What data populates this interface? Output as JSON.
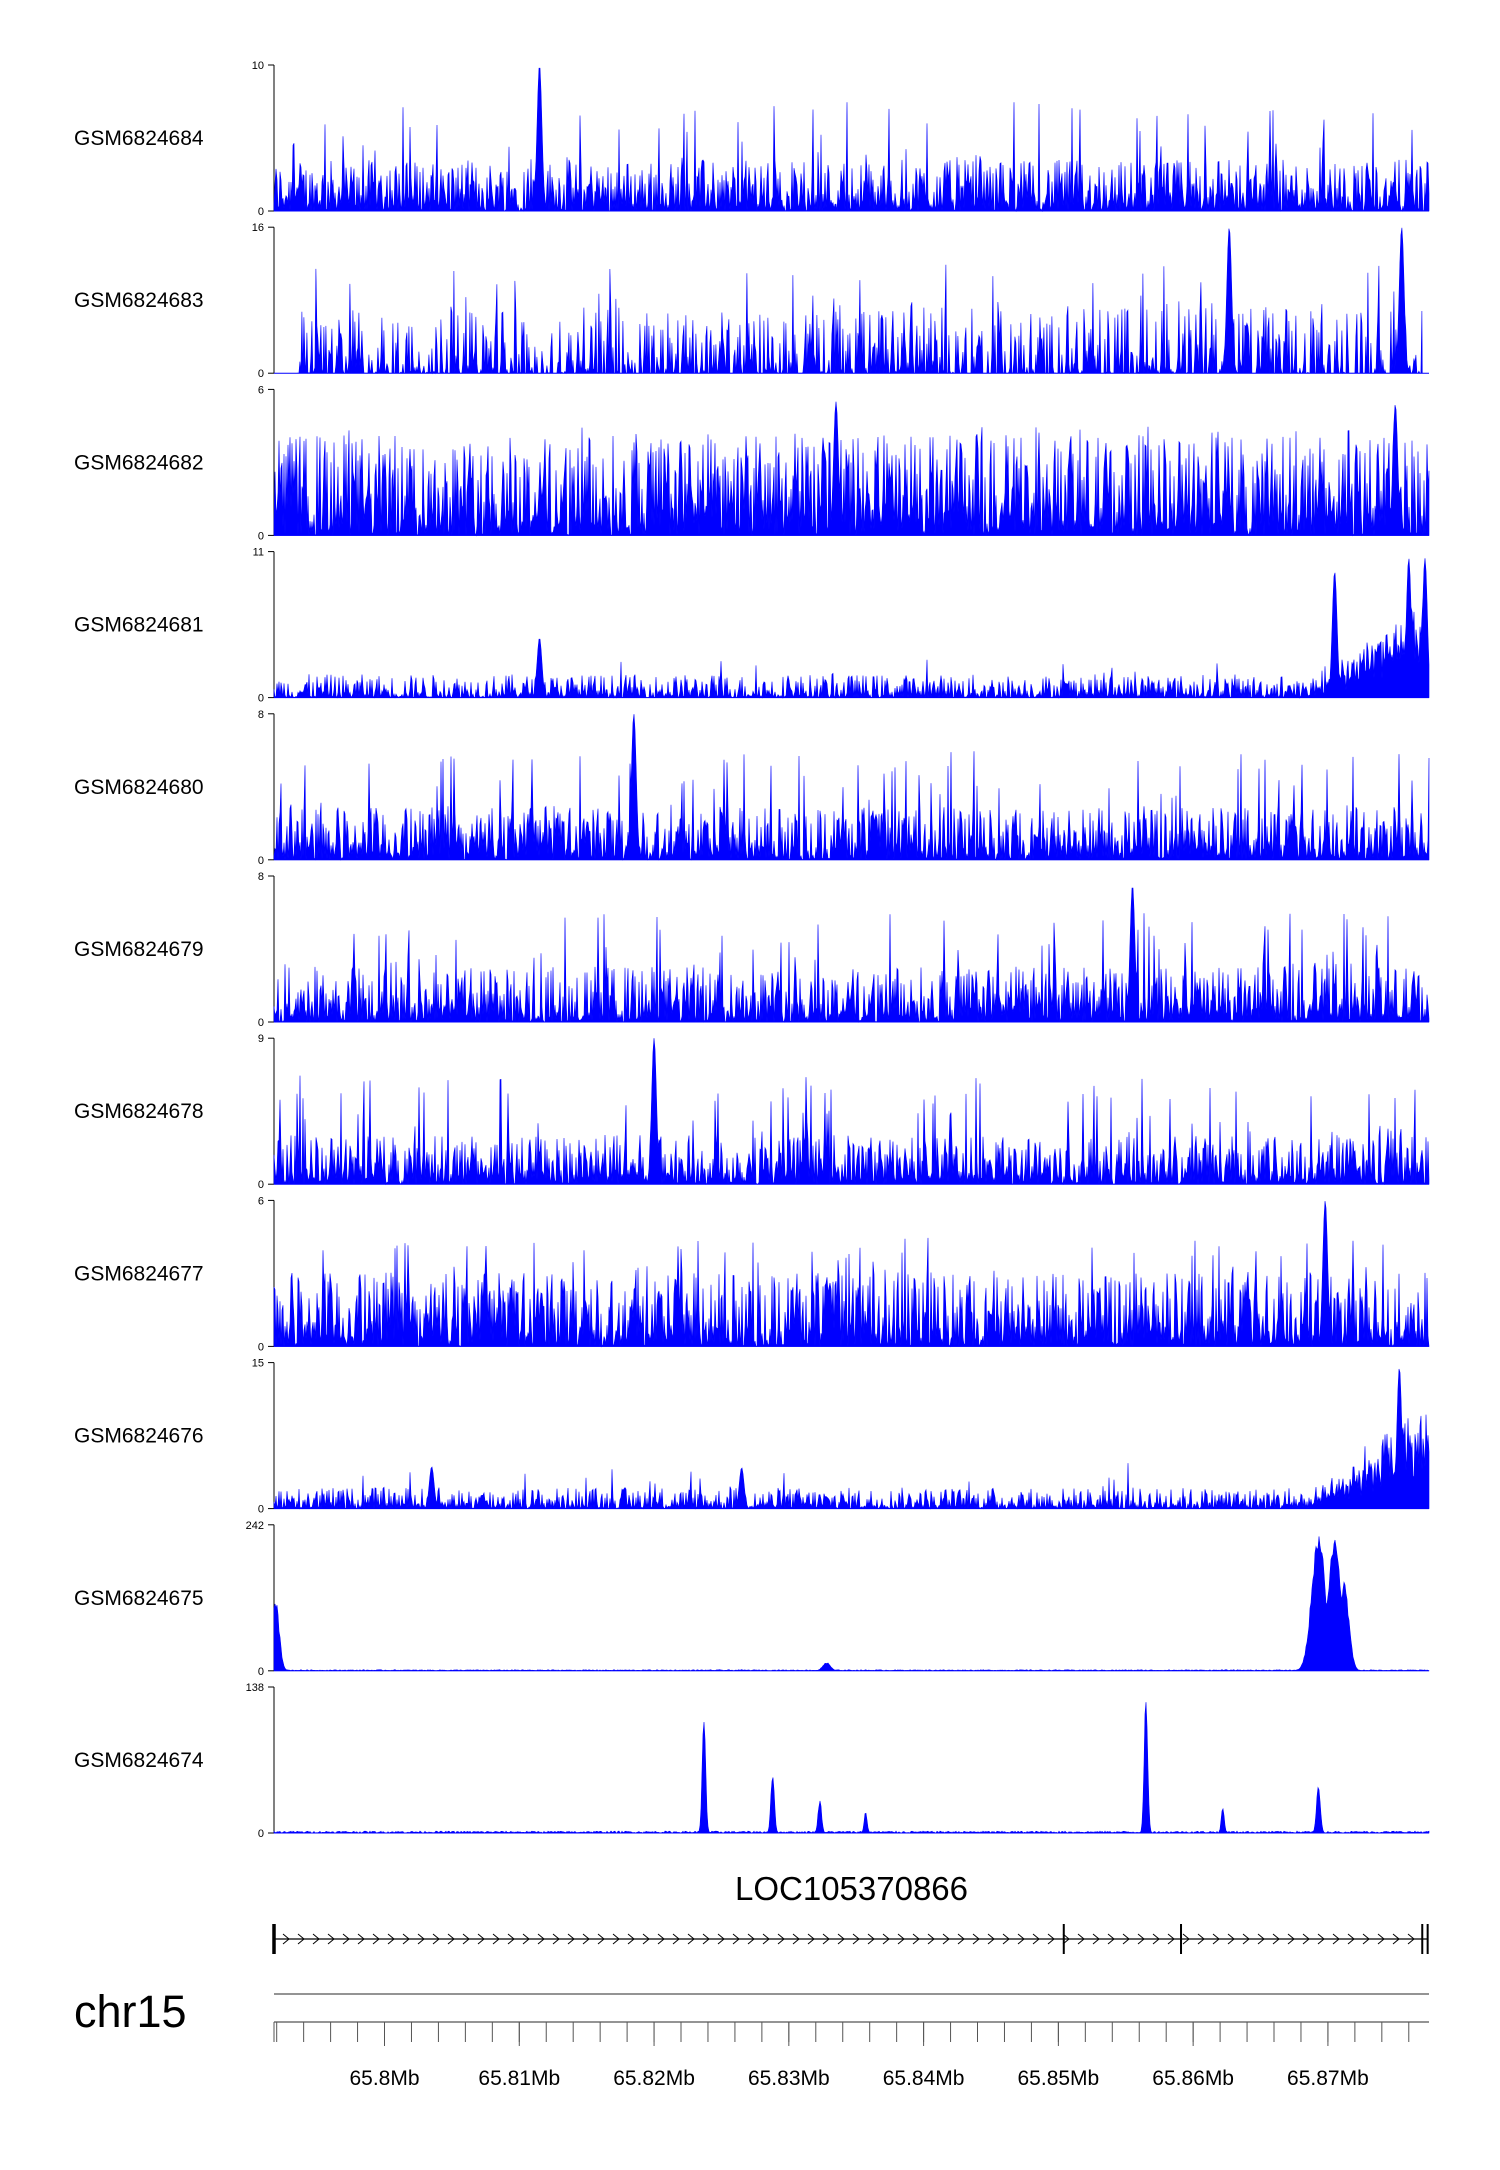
{
  "chart_data": {
    "type": "area",
    "color": "#0000ff",
    "x_range_mb": [
      65.7918,
      65.8775
    ],
    "tracks": [
      {
        "name": "GSM6824684",
        "ymax": 10,
        "ymin": 0,
        "pattern": "noisy",
        "base": 2.2,
        "peaks": [
          [
            65.8115,
            10
          ]
        ]
      },
      {
        "name": "GSM6824683",
        "ymax": 16,
        "ymin": 0,
        "pattern": "noisy-gapped",
        "base": 4.5,
        "start_mb": 65.7935,
        "end_mb": 65.877,
        "peaks": [
          [
            65.8627,
            16
          ],
          [
            65.8755,
            16
          ]
        ]
      },
      {
        "name": "GSM6824682",
        "ymax": 6,
        "ymin": 0,
        "pattern": "noisy",
        "base": 2.6,
        "peaks": [
          [
            65.8335,
            5.5
          ],
          [
            65.875,
            5.4
          ]
        ]
      },
      {
        "name": "GSM6824681",
        "ymax": 11,
        "ymin": 0,
        "pattern": "low-rising",
        "base": 0.8,
        "peaks": [
          [
            65.8115,
            4.5
          ],
          [
            65.8705,
            9.5
          ],
          [
            65.876,
            10.5
          ],
          [
            65.8772,
            10.5
          ]
        ]
      },
      {
        "name": "GSM6824680",
        "ymax": 8,
        "ymin": 0,
        "pattern": "noisy",
        "base": 1.8,
        "peaks": [
          [
            65.8185,
            8
          ]
        ]
      },
      {
        "name": "GSM6824679",
        "ymax": 8,
        "ymin": 0,
        "pattern": "noisy",
        "base": 1.9,
        "peaks": [
          [
            65.8555,
            7.5
          ]
        ]
      },
      {
        "name": "GSM6824678",
        "ymax": 9,
        "ymin": 0,
        "pattern": "noisy",
        "base": 1.9,
        "peaks": [
          [
            65.82,
            9
          ]
        ]
      },
      {
        "name": "GSM6824677",
        "ymax": 6,
        "ymin": 0,
        "pattern": "noisy",
        "base": 1.9,
        "peaks": [
          [
            65.8698,
            6
          ]
        ]
      },
      {
        "name": "GSM6824676",
        "ymax": 15,
        "ymin": 0,
        "pattern": "low-rising",
        "base": 1.0,
        "peaks": [
          [
            65.8753,
            14.5
          ],
          [
            65.8265,
            4.2
          ],
          [
            65.8035,
            4.3
          ]
        ]
      },
      {
        "name": "GSM6824675",
        "ymax": 242,
        "ymin": 0,
        "pattern": "sparse",
        "base": 1.5,
        "peaks": [
          [
            65.7919,
            120,
            0.0004
          ],
          [
            65.8328,
            14,
            0.0004
          ],
          [
            65.8693,
            235,
            0.0007
          ],
          [
            65.8705,
            220,
            0.0007
          ],
          [
            65.8712,
            150,
            0.0005
          ]
        ]
      },
      {
        "name": "GSM6824674",
        "ymax": 138,
        "ymin": 0,
        "pattern": "sparse",
        "base": 1.5,
        "peaks": [
          [
            65.8237,
            112,
            0.00018
          ],
          [
            65.8288,
            60,
            0.00018
          ],
          [
            65.8323,
            33,
            0.00018
          ],
          [
            65.8357,
            22,
            0.00015
          ],
          [
            65.8565,
            136,
            0.00018
          ],
          [
            65.8622,
            27,
            0.00015
          ],
          [
            65.8693,
            47,
            0.0002
          ]
        ]
      }
    ],
    "gene": {
      "name": "LOC105370866",
      "start_mb": 65.7918,
      "end_mb": 65.8774,
      "exons_mb": [
        65.7918,
        65.8504,
        65.8591,
        65.877,
        65.8774
      ],
      "strand": "+"
    },
    "chromosome": "chr15",
    "ticks": {
      "labels": [
        "65.8Mb",
        "65.81Mb",
        "65.82Mb",
        "65.83Mb",
        "65.84Mb",
        "65.85Mb",
        "65.86Mb",
        "65.87Mb"
      ],
      "values_mb": [
        65.8,
        65.81,
        65.82,
        65.83,
        65.84,
        65.85,
        65.86,
        65.87
      ]
    }
  }
}
